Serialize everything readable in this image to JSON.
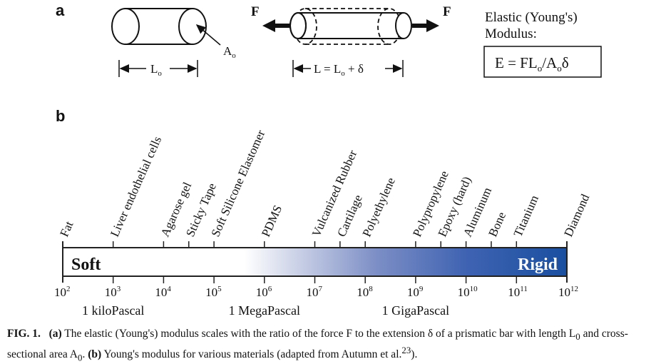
{
  "figure": {
    "panel_a": {
      "label": "a",
      "area_label": "A",
      "area_sub": "o",
      "length_label": "L",
      "length_sub": "o",
      "force_label": "F",
      "extended_prefix": "L = L",
      "extended_sub": "o",
      "extended_suffix": " + δ",
      "modulus_title_line1": "Elastic (Young's)",
      "modulus_title_line2": "Modulus:",
      "formula_p1": "E = FL",
      "formula_s1": "o",
      "formula_p2": "/A",
      "formula_s2": "o",
      "formula_p3": "δ"
    },
    "panel_b": {
      "label": "b",
      "soft_label": "Soft",
      "rigid_label": "Rigid",
      "colors": {
        "rigid": "#1a4fa0",
        "light": "#ffffff",
        "frame": "#222222"
      },
      "scale_unit_labels": [
        {
          "text": "1 kiloPascal",
          "exp": 3
        },
        {
          "text": "1 MegaPascal",
          "exp": 6
        },
        {
          "text": "1 GigaPascal",
          "exp": 9
        }
      ]
    }
  },
  "chart_data": {
    "type": "scale",
    "title": "Young's modulus for various materials",
    "axis": {
      "scale": "log10",
      "unit": "Pa",
      "range_exp": [
        2,
        12
      ]
    },
    "ticks": [
      {
        "base": "10",
        "exp": "2"
      },
      {
        "base": "10",
        "exp": "3"
      },
      {
        "base": "10",
        "exp": "4"
      },
      {
        "base": "10",
        "exp": "5"
      },
      {
        "base": "10",
        "exp": "6"
      },
      {
        "base": "10",
        "exp": "7"
      },
      {
        "base": "10",
        "exp": "8"
      },
      {
        "base": "10",
        "exp": "9"
      },
      {
        "base": "10",
        "exp": "10"
      },
      {
        "base": "10",
        "exp": "11"
      },
      {
        "base": "10",
        "exp": "12"
      }
    ],
    "materials": [
      {
        "name": "Fat",
        "log_modulus": 2.0
      },
      {
        "name": "Liver endothelial cells",
        "log_modulus": 3.0
      },
      {
        "name": "Agarose gel",
        "log_modulus": 4.0
      },
      {
        "name": "Sticky Tape",
        "log_modulus": 4.5
      },
      {
        "name": "Soft Silicone Elastomer",
        "log_modulus": 5.0
      },
      {
        "name": "PDMS",
        "log_modulus": 6.0
      },
      {
        "name": "Vulcanized Rubber",
        "log_modulus": 7.0
      },
      {
        "name": "Cartilage",
        "log_modulus": 7.5
      },
      {
        "name": "Polyethylene",
        "log_modulus": 8.0
      },
      {
        "name": "Polypropylene",
        "log_modulus": 9.0
      },
      {
        "name": "Epoxy (hard)",
        "log_modulus": 9.5
      },
      {
        "name": "Aluminum",
        "log_modulus": 10.0
      },
      {
        "name": "Bone",
        "log_modulus": 10.5
      },
      {
        "name": "Titanium",
        "log_modulus": 11.0
      },
      {
        "name": "Diamond",
        "log_modulus": 12.0
      }
    ]
  },
  "caption": {
    "fig_label": "FIG. 1.",
    "a_label": "(a)",
    "a_text1": " The elastic (Young's) modulus scales with the ratio of the force F to the extension δ of a prismatic bar with length L",
    "a_sub1": "0",
    "a_text2": " and cross-sectional area A",
    "a_sub2": "0",
    "a_text3": ". ",
    "b_label": "(b)",
    "b_text": " Young's modulus for various materials (adapted from Autumn et al.",
    "ref": "23",
    "end": ")."
  }
}
